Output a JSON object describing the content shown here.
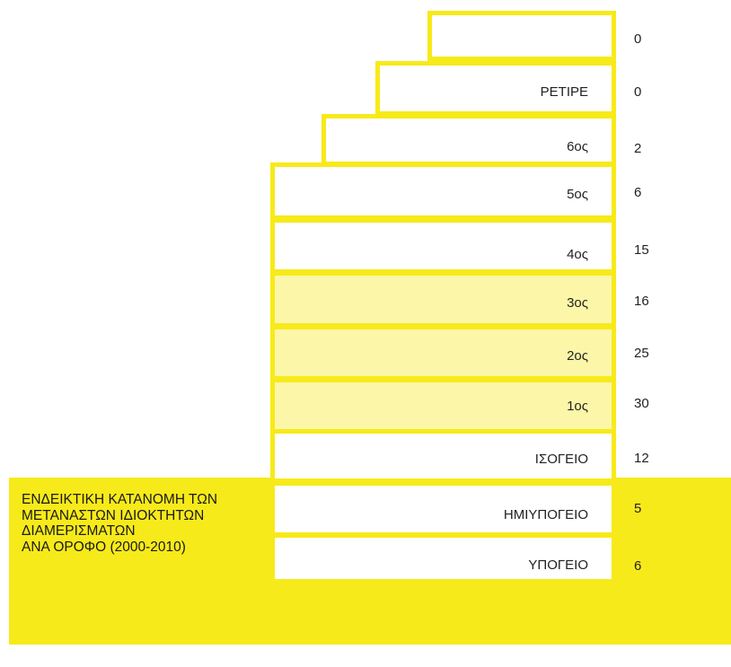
{
  "caption": {
    "lines": [
      "ΕΝΔΕΙΚΤΙΚΗ ΚΑΤΑΝΟΜΗ ΤΩΝ",
      "ΜΕΤΑΝΑΣΤΩΝ ΙΔΙΟΚΤΗΤΩΝ",
      "ΔΙΑΜΕΡΙΣΜΑΤΩΝ",
      "ΑΝΑ ΟΡΟΦΟ (2000-2010)"
    ]
  },
  "floors": [
    {
      "label": "",
      "count": "0",
      "highlighted": false
    },
    {
      "label": "ΡΕΤΙΡΕ",
      "count": "0",
      "highlighted": false
    },
    {
      "label": "6ος",
      "count": "2",
      "highlighted": false
    },
    {
      "label": "5ος",
      "count": "6",
      "highlighted": false
    },
    {
      "label": "4ος",
      "count": "15",
      "highlighted": false
    },
    {
      "label": "3ος",
      "count": "16",
      "highlighted": true
    },
    {
      "label": "2ος",
      "count": "25",
      "highlighted": true
    },
    {
      "label": "1ος",
      "count": "30",
      "highlighted": true
    },
    {
      "label": "ΙΣΟΓΕΙΟ",
      "count": "12",
      "highlighted": false
    },
    {
      "label": "ΗΜΙΥΠΟΓΕΙΟ",
      "count": "5",
      "highlighted": false
    },
    {
      "label": "ΥΠΟΓΕΙΟ",
      "count": "6",
      "highlighted": false
    }
  ],
  "colors": {
    "accent_yellow": "#f7ea1a",
    "highlight_fill": "#fcf6a8",
    "floor_fill": "#ffffff"
  }
}
